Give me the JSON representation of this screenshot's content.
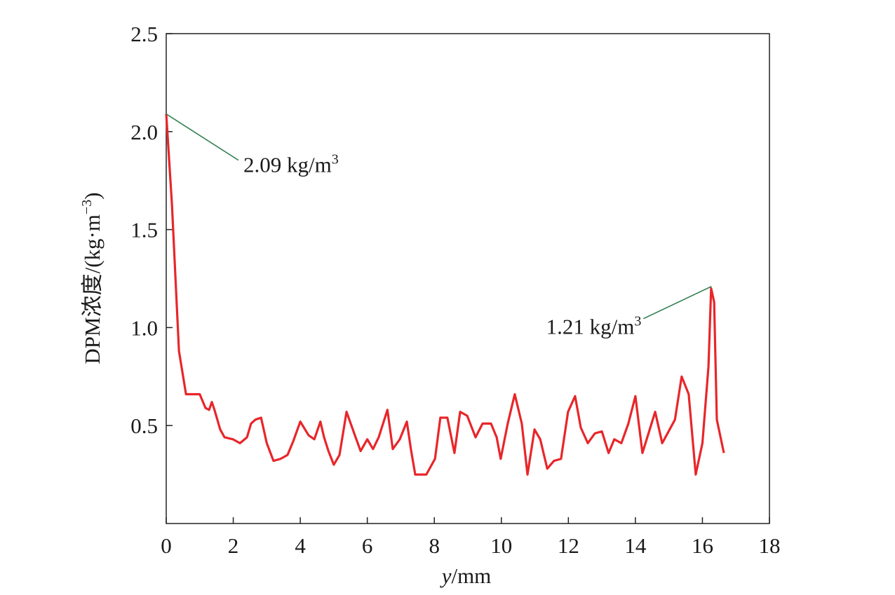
{
  "chart_data": {
    "type": "line",
    "x_label": {
      "italic": "y",
      "rest": "/mm"
    },
    "y_label": {
      "text": "DPM浓度/(kg·m",
      "sup": "−3",
      "end": ")"
    },
    "xlim": [
      0,
      18
    ],
    "xticks": [
      0,
      2,
      4,
      6,
      8,
      10,
      12,
      14,
      16,
      18
    ],
    "ylim": [
      0,
      2.5
    ],
    "yticks": [
      {
        "value": 0.5,
        "label": "0.5"
      },
      {
        "value": 1.0,
        "label": "1.0"
      },
      {
        "value": 1.5,
        "label": "1.5"
      },
      {
        "value": 2.0,
        "label": "2.0"
      },
      2.5
    ],
    "series": [
      {
        "color": "#e8262a",
        "x": [
          0,
          0.17,
          0.38,
          0.59,
          1.0,
          1.17,
          1.28,
          1.36,
          1.44,
          1.61,
          1.74,
          1.99,
          2.2,
          2.41,
          2.53,
          2.66,
          2.83,
          3.0,
          3.2,
          3.41,
          3.62,
          3.79,
          4.0,
          4.25,
          4.42,
          4.6,
          4.71,
          4.84,
          5.0,
          5.17,
          5.38,
          5.63,
          5.8,
          6.0,
          6.17,
          6.34,
          6.6,
          6.76,
          6.97,
          7.18,
          7.3,
          7.43,
          7.76,
          8.02,
          8.18,
          8.39,
          8.6,
          8.77,
          8.98,
          9.23,
          9.44,
          9.69,
          9.86,
          9.98,
          10.19,
          10.4,
          10.61,
          10.78,
          10.99,
          11.16,
          11.37,
          11.57,
          11.78,
          11.99,
          12.2,
          12.37,
          12.58,
          12.79,
          13.0,
          13.2,
          13.37,
          13.58,
          13.79,
          14.0,
          14.21,
          14.59,
          14.8,
          15.18,
          15.38,
          15.59,
          15.8,
          16.0,
          16.18,
          16.26,
          16.35,
          16.43,
          16.64
        ],
        "values": [
          2.09,
          1.63,
          0.88,
          0.66,
          0.66,
          0.59,
          0.58,
          0.62,
          0.58,
          0.48,
          0.44,
          0.43,
          0.41,
          0.44,
          0.51,
          0.53,
          0.54,
          0.41,
          0.32,
          0.33,
          0.35,
          0.42,
          0.52,
          0.45,
          0.43,
          0.52,
          0.44,
          0.37,
          0.3,
          0.35,
          0.57,
          0.45,
          0.37,
          0.43,
          0.38,
          0.44,
          0.58,
          0.38,
          0.43,
          0.52,
          0.38,
          0.25,
          0.25,
          0.33,
          0.54,
          0.54,
          0.36,
          0.57,
          0.55,
          0.44,
          0.51,
          0.51,
          0.44,
          0.33,
          0.51,
          0.66,
          0.51,
          0.25,
          0.48,
          0.43,
          0.28,
          0.32,
          0.33,
          0.57,
          0.65,
          0.49,
          0.41,
          0.46,
          0.47,
          0.36,
          0.43,
          0.41,
          0.51,
          0.65,
          0.36,
          0.57,
          0.41,
          0.53,
          0.75,
          0.66,
          0.25,
          0.41,
          0.8,
          1.2,
          1.13,
          0.53,
          0.36
        ]
      }
    ],
    "annotations": [
      {
        "text": "2.09 kg/m",
        "sup": "3",
        "x": 0,
        "y": 2.09,
        "color": "#2e7d4f"
      },
      {
        "text": "1.21 kg/m",
        "sup": "3",
        "x": 16.27,
        "y": 1.21,
        "color": "#2e7d4f"
      }
    ]
  }
}
